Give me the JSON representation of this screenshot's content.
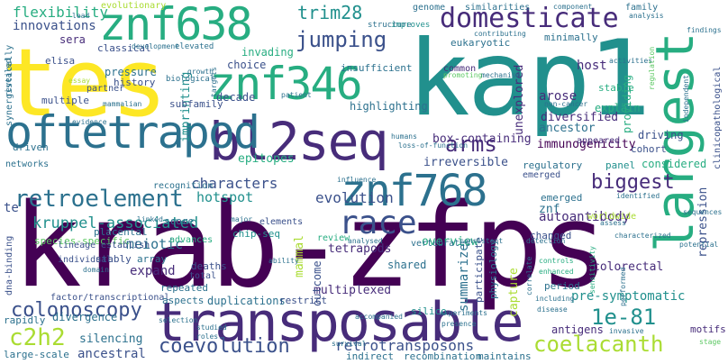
{
  "words": [
    {
      "text": "krab-zfps"
    },
    {
      "text": "kap1"
    },
    {
      "text": "tes"
    },
    {
      "text": "largest"
    },
    {
      "text": "transposable"
    },
    {
      "text": "bl2seq"
    },
    {
      "text": "oftetrapod"
    },
    {
      "text": "znf638"
    },
    {
      "text": "znf346"
    },
    {
      "text": "znf768"
    },
    {
      "text": "retroelement"
    },
    {
      "text": "domesticate"
    },
    {
      "text": "jumping"
    },
    {
      "text": "race"
    },
    {
      "text": "coevolution"
    },
    {
      "text": "coelacanth"
    },
    {
      "text": "colonoscopy"
    },
    {
      "text": "c2h2"
    },
    {
      "text": "1e-81"
    },
    {
      "text": "arms"
    },
    {
      "text": "trim28"
    },
    {
      "text": "biggest"
    },
    {
      "text": "retrotransposons"
    },
    {
      "text": "kruppel-associated"
    },
    {
      "text": "flexibility"
    },
    {
      "text": "innovations"
    },
    {
      "text": "sera"
    },
    {
      "text": "evolution"
    },
    {
      "text": "characters"
    },
    {
      "text": "hotspot"
    },
    {
      "text": "tetrapods"
    },
    {
      "text": "meiotic"
    },
    {
      "text": "expand"
    },
    {
      "text": "silencing"
    },
    {
      "text": "ancestral"
    },
    {
      "text": "multiplexed"
    },
    {
      "text": "summarize"
    },
    {
      "text": "pre-symptomatic"
    },
    {
      "text": "colorectal"
    },
    {
      "text": "antigens"
    },
    {
      "text": "autoantibody"
    },
    {
      "text": "immunogenicity"
    },
    {
      "text": "irreversible"
    },
    {
      "text": "box-containing"
    },
    {
      "text": "diversified"
    },
    {
      "text": "ancestor"
    },
    {
      "text": "arose"
    },
    {
      "text": "host"
    },
    {
      "text": "unexplored"
    },
    {
      "text": "epitopes"
    },
    {
      "text": "invading"
    },
    {
      "text": "choice"
    },
    {
      "text": "decade"
    },
    {
      "text": "imprinting"
    },
    {
      "text": "pressure"
    },
    {
      "text": "evolutionary"
    },
    {
      "text": "repression"
    },
    {
      "text": "capture"
    },
    {
      "text": "overview"
    },
    {
      "text": "mammal"
    },
    {
      "text": "duplications"
    },
    {
      "text": "divergence"
    },
    {
      "text": "elisa"
    },
    {
      "text": "subfamily"
    },
    {
      "text": "history"
    },
    {
      "text": "classical"
    },
    {
      "text": "partner"
    },
    {
      "text": "multiple"
    },
    {
      "text": "te"
    },
    {
      "text": "species-specific"
    },
    {
      "text": "advances"
    },
    {
      "text": "recognition"
    },
    {
      "text": "placental"
    },
    {
      "text": "score"
    },
    {
      "text": "elements"
    },
    {
      "text": "chip-seq"
    },
    {
      "text": "vertebrates"
    },
    {
      "text": "emerged"
    },
    {
      "text": "regulatory"
    },
    {
      "text": "znf"
    },
    {
      "text": "driving"
    },
    {
      "text": "cohort"
    },
    {
      "text": "panel"
    },
    {
      "text": "appeared"
    },
    {
      "text": "considered"
    },
    {
      "text": "explain"
    },
    {
      "text": "stable"
    },
    {
      "text": "providing"
    },
    {
      "text": "minimally"
    },
    {
      "text": "eukaryotic"
    },
    {
      "text": "insufficient"
    },
    {
      "text": "highlighting"
    },
    {
      "text": "genome"
    },
    {
      "text": "similarities"
    },
    {
      "text": "family"
    },
    {
      "text": "common"
    },
    {
      "text": "networks"
    },
    {
      "text": "driven"
    },
    {
      "text": "synergistically"
    },
    {
      "text": "repeated"
    },
    {
      "text": "deaths"
    },
    {
      "text": "array"
    },
    {
      "text": "stably"
    },
    {
      "text": "lineage"
    },
    {
      "text": "individual"
    },
    {
      "text": "establish"
    },
    {
      "text": "dna-binding"
    },
    {
      "text": "factor/transcriptional"
    },
    {
      "text": "aspects"
    },
    {
      "text": "restrict"
    },
    {
      "text": "outcome"
    },
    {
      "text": "review"
    },
    {
      "text": "shared"
    },
    {
      "text": "rapidly"
    },
    {
      "text": "large-scale"
    },
    {
      "text": "indirect"
    },
    {
      "text": "recombination"
    },
    {
      "text": "maintains"
    },
    {
      "text": "changed"
    },
    {
      "text": "participate"
    },
    {
      "text": "physiology"
    },
    {
      "text": "period"
    },
    {
      "text": "motifs"
    },
    {
      "text": "worldwide"
    },
    {
      "text": "emerged"
    },
    {
      "text": "silico"
    },
    {
      "text": "total"
    },
    {
      "text": "biological"
    },
    {
      "text": "revealed"
    },
    {
      "text": "elevated"
    },
    {
      "text": "structure"
    },
    {
      "text": "improves"
    },
    {
      "text": "lead"
    },
    {
      "text": "component"
    },
    {
      "text": "findings"
    },
    {
      "text": "independent"
    },
    {
      "text": "clinicopathological"
    },
    {
      "text": "stage"
    },
    {
      "text": "sequences"
    },
    {
      "text": "potential"
    },
    {
      "text": "invasive"
    },
    {
      "text": "including"
    },
    {
      "text": "enhanced"
    },
    {
      "text": "controls"
    },
    {
      "text": "detection"
    },
    {
      "text": "consistent"
    },
    {
      "text": "analysed"
    },
    {
      "text": "survival"
    },
    {
      "text": "studied"
    },
    {
      "text": "roles"
    },
    {
      "text": "selection"
    },
    {
      "text": "humans"
    },
    {
      "text": "influence"
    },
    {
      "text": "mechanism"
    },
    {
      "text": "contributing"
    },
    {
      "text": "disease"
    },
    {
      "text": "identified"
    },
    {
      "text": "assess"
    },
    {
      "text": "characterized"
    },
    {
      "text": "performed"
    },
    {
      "text": "sensitivity"
    },
    {
      "text": "correlate"
    },
    {
      "text": "non-cancer"
    },
    {
      "text": "loss-of-function"
    },
    {
      "text": "development"
    },
    {
      "text": "essay"
    },
    {
      "text": "growth"
    },
    {
      "text": "mammalian"
    },
    {
      "text": "evidence"
    },
    {
      "text": "targets"
    },
    {
      "text": "linked"
    },
    {
      "text": "accompanied"
    },
    {
      "text": "ability"
    },
    {
      "text": "major"
    },
    {
      "text": "domain"
    },
    {
      "text": "experiments"
    },
    {
      "text": "presence"
    },
    {
      "text": "activities"
    },
    {
      "text": "analysis"
    },
    {
      "text": "promoting"
    },
    {
      "text": "regulation"
    },
    {
      "text": "patient"
    }
  ]
}
